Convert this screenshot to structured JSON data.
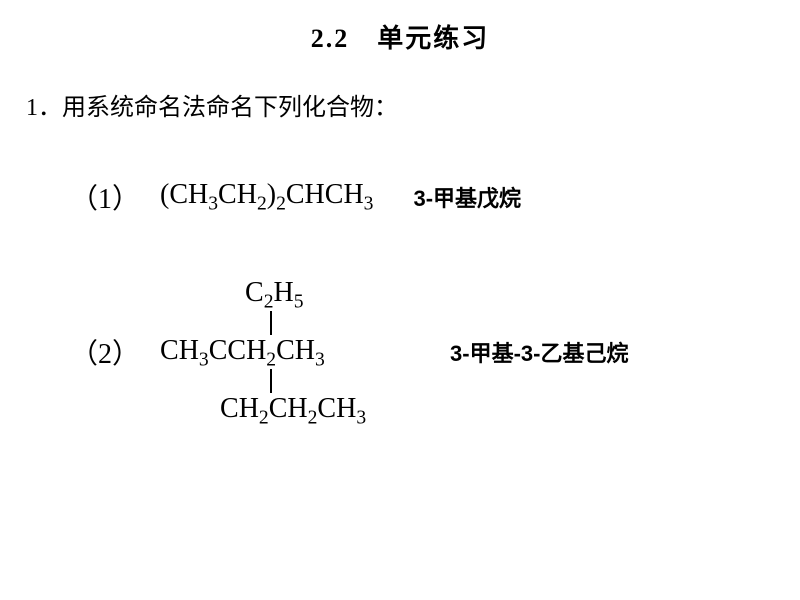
{
  "title": "2.2　单元练习",
  "question_header": "1．用系统命名法命名下列化合物：",
  "problem1": {
    "label": "（1）",
    "formula_html": "(CH<sub>3</sub>CH<sub>2</sub>)<sub>2</sub>CHCH<sub>3</sub>",
    "answer_prefix": "3-",
    "answer_text": "甲基戊烷"
  },
  "problem2": {
    "label": "（2）",
    "structure": {
      "top_html": "C<sub>2</sub>H<sub>5</sub>",
      "mid_html": "CH<sub>3</sub>CCH<sub>2</sub>CH<sub>3</sub>",
      "bottom_html": "CH<sub>2</sub>CH<sub>2</sub>CH<sub>3</sub>"
    },
    "answer_prefix1": "3-",
    "answer_mid1": "甲基",
    "answer_prefix2": "-3-",
    "answer_mid2": "乙基己烷"
  },
  "colors": {
    "background": "#ffffff",
    "text": "#000000"
  },
  "fonts": {
    "title_size": 26,
    "header_size": 24,
    "label_size": 28,
    "formula_size": 28,
    "answer_size": 22
  }
}
